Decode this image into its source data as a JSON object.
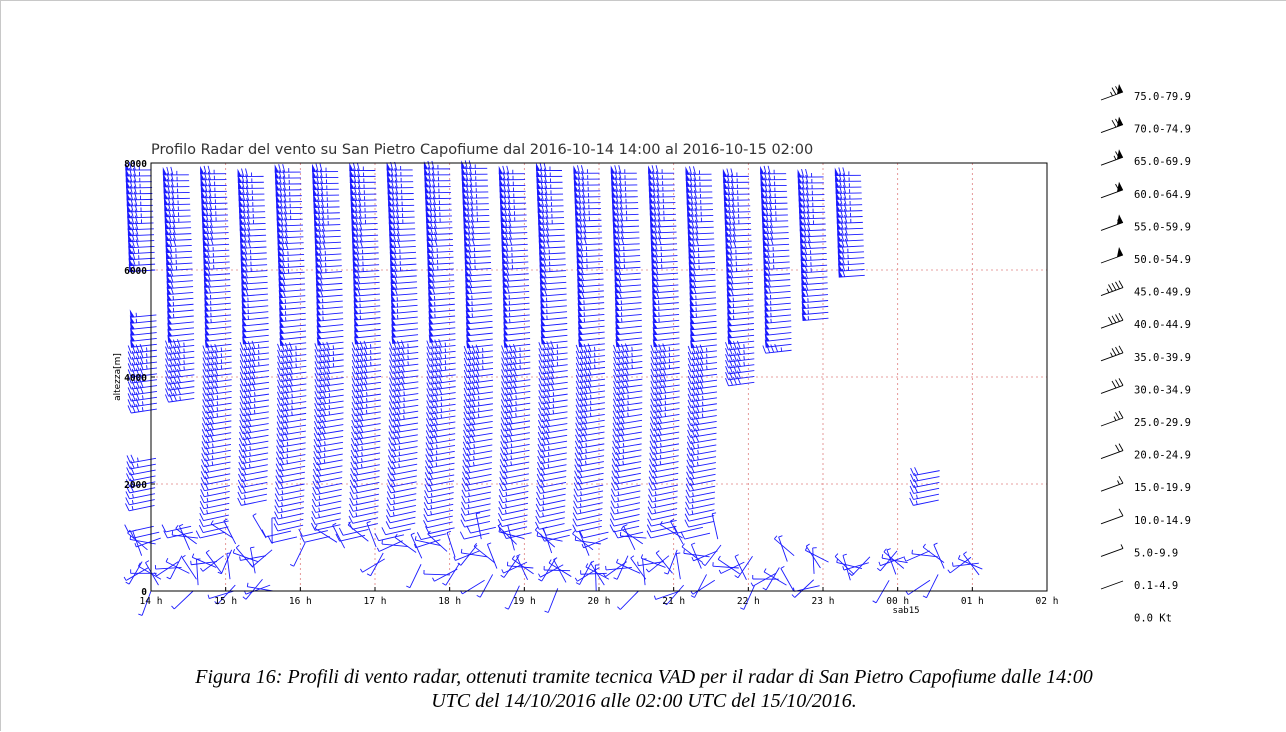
{
  "chart_data": {
    "type": "wind-barb time-height profile",
    "title": "Profilo Radar del vento su San Pietro Capofiume dal 2016-10-14 14:00 al 2016-10-15 02:00",
    "ylabel": "altezza[m]",
    "ylim": [
      0,
      8000
    ],
    "y_ticks": [
      "0",
      "2000",
      "4000",
      "6000",
      "8000"
    ],
    "xlim": [
      0,
      12
    ],
    "x_ticks": [
      "14 h",
      "15 h",
      "16 h",
      "17 h",
      "18 h",
      "19 h",
      "20 h",
      "21 h",
      "22 h",
      "23 h",
      "00 h",
      "01 h",
      "02 h"
    ],
    "x_sublabel": "sab15",
    "grid": true,
    "series_color": "#1a1aff",
    "profiles": [
      {
        "t": 0.0,
        "segments": [
          [
            6000,
            7900
          ],
          [
            1600,
            2500
          ],
          [
            3400,
            5200
          ],
          [
            0,
            1300
          ]
        ]
      },
      {
        "t": 0.5,
        "segments": [
          [
            3600,
            7800
          ],
          [
            0,
            1300
          ]
        ]
      },
      {
        "t": 1.0,
        "segments": [
          [
            1200,
            7800
          ],
          [
            0,
            1100
          ]
        ]
      },
      {
        "t": 1.5,
        "segments": [
          [
            1700,
            7800
          ],
          [
            0,
            1000
          ]
        ]
      },
      {
        "t": 2.0,
        "segments": [
          [
            900,
            7900
          ]
        ]
      },
      {
        "t": 2.5,
        "segments": [
          [
            800,
            7900
          ]
        ]
      },
      {
        "t": 3.0,
        "segments": [
          [
            600,
            7900
          ]
        ]
      },
      {
        "t": 3.5,
        "segments": [
          [
            500,
            7900
          ]
        ]
      },
      {
        "t": 4.0,
        "segments": [
          [
            300,
            7900
          ]
        ]
      },
      {
        "t": 4.5,
        "segments": [
          [
            200,
            7900
          ]
        ]
      },
      {
        "t": 5.0,
        "segments": [
          [
            100,
            7900
          ]
        ]
      },
      {
        "t": 5.5,
        "segments": [
          [
            50,
            7900
          ]
        ]
      },
      {
        "t": 6.0,
        "segments": [
          [
            0,
            7900
          ]
        ]
      },
      {
        "t": 6.5,
        "segments": [
          [
            0,
            7900
          ]
        ]
      },
      {
        "t": 7.0,
        "segments": [
          [
            0,
            7900
          ]
        ]
      },
      {
        "t": 7.5,
        "segments": [
          [
            200,
            7800
          ]
        ]
      },
      {
        "t": 8.0,
        "segments": [
          [
            3900,
            7800
          ],
          [
            100,
            700
          ]
        ]
      },
      {
        "t": 8.5,
        "segments": [
          [
            4500,
            7800
          ],
          [
            0,
            700
          ]
        ]
      },
      {
        "t": 9.0,
        "segments": [
          [
            5100,
            7800
          ],
          [
            100,
            600
          ]
        ]
      },
      {
        "t": 9.5,
        "segments": [
          [
            5900,
            7800
          ],
          [
            200,
            700
          ]
        ]
      },
      {
        "t": 10.0,
        "segments": [
          [
            200,
            800
          ]
        ]
      },
      {
        "t": 10.5,
        "segments": [
          [
            200,
            800
          ],
          [
            1700,
            2300
          ]
        ]
      },
      {
        "t": 11.0,
        "segments": [
          [
            300,
            700
          ]
        ]
      }
    ],
    "legend": [
      "75.0-79.9",
      "70.0-74.9",
      "65.0-69.9",
      "60.0-64.9",
      "55.0-59.9",
      "50.0-54.9",
      "45.0-49.9",
      "40.0-44.9",
      "35.0-39.9",
      "30.0-34.9",
      "25.0-29.9",
      "20.0-24.9",
      "15.0-19.9",
      "10.0-14.9",
      "5.0-9.9",
      "0.1-4.9",
      "0.0 Kt"
    ],
    "legend_placement": "right"
  },
  "caption": {
    "line1": "Figura 16: Profili di vento radar, ottenuti tramite tecnica VAD per il radar di San Pietro Capofiume dalle 14:00",
    "line2": "UTC del 14/10/2016 alle 02:00 UTC del 15/10/2016."
  }
}
